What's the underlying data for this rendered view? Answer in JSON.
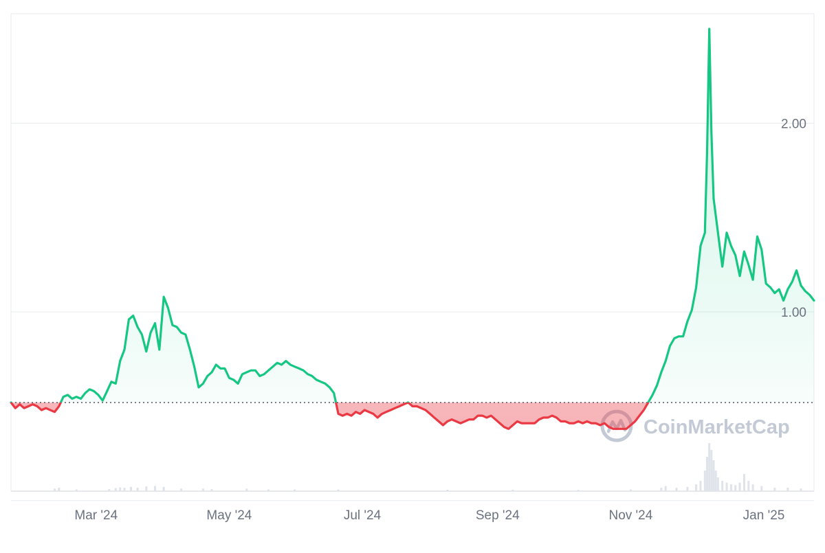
{
  "watermark": {
    "text": "CoinMarketCap",
    "icon": "coinmarketcap-logo-icon"
  },
  "colors": {
    "up": "#16c784",
    "down": "#ea3943",
    "up_fill": "#16c784",
    "down_fill": "#ea3943",
    "grid": "#e8ebef",
    "baseline": "#5b6270",
    "volume": "#dfe3ea",
    "axis_text": "#6b7280",
    "watermark": "#c3cad6"
  },
  "chart_data": {
    "type": "area",
    "title": "",
    "xlabel": "",
    "ylabel": "",
    "baseline_value": 0.52,
    "ylim": [
      0.05,
      2.58
    ],
    "xlim": [
      0,
      357
    ],
    "grid": "horizontal",
    "y_ticks": [
      {
        "value": 2.0,
        "label": "2.00"
      },
      {
        "value": 1.0,
        "label": "1.00"
      }
    ],
    "y_gridlines": [
      2.0,
      1.0,
      0.0
    ],
    "x_ticks": [
      {
        "day": 39,
        "label": "Mar '24"
      },
      {
        "day": 100,
        "label": "May '24"
      },
      {
        "day": 161,
        "label": "Jul '24"
      },
      {
        "day": 223,
        "label": "Sep '24"
      },
      {
        "day": 284,
        "label": "Nov '24"
      },
      {
        "day": 345,
        "label": "Jan '25"
      }
    ],
    "series": [
      {
        "points": [
          [
            0,
            0.52
          ],
          [
            2,
            0.49
          ],
          [
            4,
            0.51
          ],
          [
            6,
            0.49
          ],
          [
            8,
            0.5
          ],
          [
            10,
            0.51
          ],
          [
            12,
            0.5
          ],
          [
            14,
            0.48
          ],
          [
            16,
            0.49
          ],
          [
            18,
            0.48
          ],
          [
            20,
            0.47
          ],
          [
            22,
            0.5
          ],
          [
            24,
            0.55
          ],
          [
            26,
            0.56
          ],
          [
            28,
            0.54
          ],
          [
            30,
            0.55
          ],
          [
            32,
            0.54
          ],
          [
            34,
            0.57
          ],
          [
            36,
            0.59
          ],
          [
            38,
            0.58
          ],
          [
            40,
            0.56
          ],
          [
            42,
            0.53
          ],
          [
            44,
            0.58
          ],
          [
            46,
            0.63
          ],
          [
            48,
            0.62
          ],
          [
            50,
            0.74
          ],
          [
            52,
            0.8
          ],
          [
            54,
            0.96
          ],
          [
            56,
            0.98
          ],
          [
            58,
            0.92
          ],
          [
            60,
            0.88
          ],
          [
            62,
            0.79
          ],
          [
            64,
            0.89
          ],
          [
            66,
            0.94
          ],
          [
            68,
            0.8
          ],
          [
            70,
            1.08
          ],
          [
            72,
            1.02
          ],
          [
            74,
            0.93
          ],
          [
            76,
            0.92
          ],
          [
            78,
            0.89
          ],
          [
            80,
            0.88
          ],
          [
            82,
            0.8
          ],
          [
            84,
            0.71
          ],
          [
            86,
            0.6
          ],
          [
            88,
            0.62
          ],
          [
            90,
            0.66
          ],
          [
            92,
            0.68
          ],
          [
            94,
            0.72
          ],
          [
            96,
            0.7
          ],
          [
            98,
            0.7
          ],
          [
            100,
            0.65
          ],
          [
            102,
            0.64
          ],
          [
            104,
            0.62
          ],
          [
            106,
            0.67
          ],
          [
            108,
            0.68
          ],
          [
            110,
            0.69
          ],
          [
            112,
            0.69
          ],
          [
            114,
            0.66
          ],
          [
            116,
            0.67
          ],
          [
            118,
            0.69
          ],
          [
            120,
            0.71
          ],
          [
            122,
            0.73
          ],
          [
            124,
            0.72
          ],
          [
            126,
            0.74
          ],
          [
            128,
            0.72
          ],
          [
            130,
            0.71
          ],
          [
            132,
            0.7
          ],
          [
            134,
            0.69
          ],
          [
            136,
            0.67
          ],
          [
            138,
            0.66
          ],
          [
            140,
            0.64
          ],
          [
            142,
            0.63
          ],
          [
            144,
            0.62
          ],
          [
            146,
            0.6
          ],
          [
            148,
            0.57
          ],
          [
            150,
            0.46
          ],
          [
            152,
            0.45
          ],
          [
            154,
            0.46
          ],
          [
            156,
            0.45
          ],
          [
            158,
            0.47
          ],
          [
            160,
            0.46
          ],
          [
            162,
            0.48
          ],
          [
            164,
            0.47
          ],
          [
            166,
            0.46
          ],
          [
            168,
            0.44
          ],
          [
            170,
            0.46
          ],
          [
            172,
            0.47
          ],
          [
            174,
            0.48
          ],
          [
            176,
            0.49
          ],
          [
            178,
            0.5
          ],
          [
            180,
            0.51
          ],
          [
            182,
            0.52
          ],
          [
            184,
            0.5
          ],
          [
            186,
            0.5
          ],
          [
            188,
            0.49
          ],
          [
            190,
            0.48
          ],
          [
            192,
            0.46
          ],
          [
            194,
            0.44
          ],
          [
            196,
            0.42
          ],
          [
            198,
            0.4
          ],
          [
            200,
            0.42
          ],
          [
            202,
            0.43
          ],
          [
            204,
            0.42
          ],
          [
            206,
            0.41
          ],
          [
            208,
            0.42
          ],
          [
            210,
            0.43
          ],
          [
            212,
            0.43
          ],
          [
            214,
            0.45
          ],
          [
            216,
            0.45
          ],
          [
            218,
            0.44
          ],
          [
            220,
            0.45
          ],
          [
            222,
            0.43
          ],
          [
            224,
            0.41
          ],
          [
            226,
            0.39
          ],
          [
            228,
            0.38
          ],
          [
            230,
            0.4
          ],
          [
            232,
            0.42
          ],
          [
            234,
            0.41
          ],
          [
            236,
            0.41
          ],
          [
            238,
            0.41
          ],
          [
            240,
            0.41
          ],
          [
            242,
            0.43
          ],
          [
            244,
            0.44
          ],
          [
            246,
            0.44
          ],
          [
            248,
            0.45
          ],
          [
            250,
            0.44
          ],
          [
            252,
            0.42
          ],
          [
            254,
            0.42
          ],
          [
            256,
            0.41
          ],
          [
            258,
            0.41
          ],
          [
            260,
            0.42
          ],
          [
            262,
            0.41
          ],
          [
            264,
            0.42
          ],
          [
            266,
            0.41
          ],
          [
            268,
            0.41
          ],
          [
            270,
            0.4
          ],
          [
            272,
            0.41
          ],
          [
            274,
            0.39
          ],
          [
            276,
            0.38
          ],
          [
            278,
            0.38
          ],
          [
            280,
            0.38
          ],
          [
            282,
            0.38
          ],
          [
            284,
            0.4
          ],
          [
            286,
            0.42
          ],
          [
            288,
            0.45
          ],
          [
            290,
            0.48
          ],
          [
            292,
            0.52
          ],
          [
            294,
            0.56
          ],
          [
            296,
            0.61
          ],
          [
            298,
            0.68
          ],
          [
            300,
            0.74
          ],
          [
            302,
            0.82
          ],
          [
            304,
            0.86
          ],
          [
            306,
            0.87
          ],
          [
            308,
            0.87
          ],
          [
            310,
            0.95
          ],
          [
            312,
            1.01
          ],
          [
            314,
            1.13
          ],
          [
            316,
            1.35
          ],
          [
            318,
            1.42
          ],
          [
            319,
            1.85
          ],
          [
            320,
            2.5
          ],
          [
            321,
            1.95
          ],
          [
            322,
            1.6
          ],
          [
            324,
            1.42
          ],
          [
            326,
            1.24
          ],
          [
            328,
            1.42
          ],
          [
            330,
            1.35
          ],
          [
            332,
            1.3
          ],
          [
            334,
            1.19
          ],
          [
            336,
            1.32
          ],
          [
            338,
            1.25
          ],
          [
            340,
            1.17
          ],
          [
            342,
            1.4
          ],
          [
            344,
            1.33
          ],
          [
            346,
            1.15
          ],
          [
            348,
            1.13
          ],
          [
            350,
            1.1
          ],
          [
            352,
            1.12
          ],
          [
            354,
            1.06
          ],
          [
            356,
            1.12
          ],
          [
            358,
            1.16
          ],
          [
            360,
            1.22
          ],
          [
            362,
            1.14
          ],
          [
            364,
            1.11
          ],
          [
            366,
            1.09
          ],
          [
            368,
            1.06
          ]
        ]
      }
    ],
    "volume": [
      [
        20,
        0.015
      ],
      [
        22,
        0.02
      ],
      [
        30,
        0.01
      ],
      [
        45,
        0.012
      ],
      [
        48,
        0.018
      ],
      [
        50,
        0.022
      ],
      [
        52,
        0.02
      ],
      [
        55,
        0.025
      ],
      [
        58,
        0.02
      ],
      [
        62,
        0.028
      ],
      [
        66,
        0.03
      ],
      [
        70,
        0.025
      ],
      [
        78,
        0.015
      ],
      [
        88,
        0.015
      ],
      [
        92,
        0.012
      ],
      [
        108,
        0.015
      ],
      [
        118,
        0.01
      ],
      [
        130,
        0.01
      ],
      [
        150,
        0.01
      ],
      [
        200,
        0.008
      ],
      [
        230,
        0.008
      ],
      [
        260,
        0.008
      ],
      [
        284,
        0.01
      ],
      [
        298,
        0.02
      ],
      [
        300,
        0.03
      ],
      [
        305,
        0.02
      ],
      [
        310,
        0.025
      ],
      [
        314,
        0.04
      ],
      [
        316,
        0.06
      ],
      [
        318,
        0.12
      ],
      [
        319,
        0.2
      ],
      [
        320,
        0.28
      ],
      [
        321,
        0.24
      ],
      [
        322,
        0.18
      ],
      [
        323,
        0.12
      ],
      [
        324,
        0.08
      ],
      [
        326,
        0.06
      ],
      [
        328,
        0.05
      ],
      [
        330,
        0.04
      ],
      [
        332,
        0.035
      ],
      [
        334,
        0.05
      ],
      [
        336,
        0.1
      ],
      [
        338,
        0.06
      ],
      [
        340,
        0.04
      ],
      [
        344,
        0.03
      ],
      [
        350,
        0.02
      ],
      [
        356,
        0.02
      ],
      [
        362,
        0.015
      ]
    ]
  }
}
